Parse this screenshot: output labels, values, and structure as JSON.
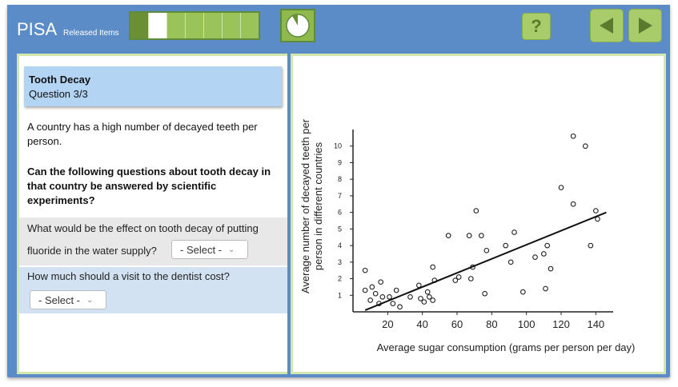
{
  "header": {
    "logo": "PISA",
    "subtitle": "Released Items",
    "help_label": "?",
    "progress_segments": [
      "done",
      "current",
      "todo",
      "todo",
      "todo",
      "todo",
      "todo"
    ],
    "timer_fraction": 0.9
  },
  "unit": {
    "title": "Tooth Decay",
    "question_label": "Question 3/3"
  },
  "stimulus": {
    "intro": "A country has a high number of decayed teeth per person.",
    "prompt": "Can the following questions about tooth decay in that country be answered by scientific experiments?"
  },
  "questions": [
    {
      "line1": "What would be the effect on tooth decay of putting",
      "line2": "fluoride in the water supply?",
      "select": "- Select -"
    },
    {
      "line1": "How much should a visit to the dentist cost?",
      "select": "- Select -"
    }
  ],
  "chart_data": {
    "type": "scatter",
    "xlabel": "Average sugar consumption (grams per person per day)",
    "ylabel_line1": "Average number of decayed teeth per",
    "ylabel_line2": "person in different countries",
    "xlim": [
      0,
      150
    ],
    "ylim": [
      0,
      11
    ],
    "xticks": [
      20,
      40,
      60,
      80,
      100,
      120,
      140
    ],
    "yticks": [
      1,
      2,
      3,
      4,
      5,
      6,
      7,
      8,
      9,
      10
    ],
    "points": [
      [
        7,
        2.5
      ],
      [
        7,
        1.3
      ],
      [
        10,
        0.7
      ],
      [
        11,
        1.5
      ],
      [
        13,
        1.1
      ],
      [
        15,
        0.5
      ],
      [
        16,
        1.8
      ],
      [
        17,
        0.9
      ],
      [
        21,
        0.9
      ],
      [
        23,
        0.5
      ],
      [
        25,
        1.3
      ],
      [
        27,
        0.3
      ],
      [
        33,
        0.9
      ],
      [
        38,
        1.6
      ],
      [
        39,
        0.8
      ],
      [
        41,
        0.6
      ],
      [
        43,
        1.2
      ],
      [
        44,
        0.9
      ],
      [
        46,
        2.7
      ],
      [
        46,
        0.7
      ],
      [
        47,
        1.9
      ],
      [
        55,
        4.6
      ],
      [
        59,
        1.9
      ],
      [
        61,
        2.1
      ],
      [
        67,
        4.6
      ],
      [
        68,
        2.0
      ],
      [
        69,
        2.7
      ],
      [
        71,
        6.1
      ],
      [
        74,
        4.6
      ],
      [
        76,
        1.1
      ],
      [
        77,
        3.7
      ],
      [
        88,
        4.0
      ],
      [
        91,
        3.0
      ],
      [
        93,
        4.8
      ],
      [
        98,
        1.2
      ],
      [
        105,
        3.3
      ],
      [
        110,
        3.5
      ],
      [
        112,
        4.0
      ],
      [
        111,
        1.4
      ],
      [
        114,
        2.6
      ],
      [
        120,
        7.5
      ],
      [
        127,
        6.5
      ],
      [
        127,
        10.6
      ],
      [
        134,
        10.0
      ],
      [
        137,
        4.0
      ],
      [
        140,
        6.1
      ],
      [
        141,
        5.6
      ]
    ],
    "trend": [
      [
        7,
        0.1
      ],
      [
        146,
        6.0
      ]
    ]
  }
}
